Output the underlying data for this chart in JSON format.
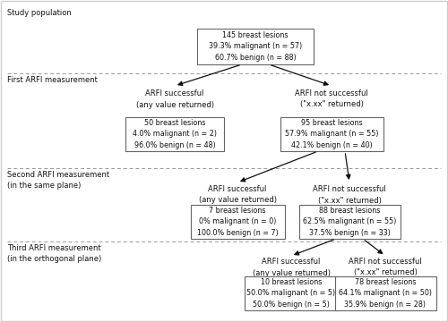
{
  "bg_color": "#ffffff",
  "fig_edge_color": "#cccccc",
  "box_color": "#ffffff",
  "box_edge_color": "#666666",
  "text_color": "#111111",
  "arrow_color": "#111111",
  "dashed_line_color": "#999999",
  "study_population_label": "Study population",
  "first_arfi_label": "First ARFI measurement",
  "second_arfi_label": "Second ARFI measurement\n(in the same plane)",
  "third_arfi_label": "Third ARFI measurement\n(in the orthogonal plane)",
  "root_box": "145 breast lesions\n39.3% malignant (n = 57)\n60.7% benign (n = 88)",
  "left1_label": "ARFI successful\n(any value returned)",
  "right1_label": "ARFI not successful\n(\"x.xx\" returned)",
  "left1_box": "50 breast lesions\n4.0% malignant (n = 2)\n96.0% benign (n = 48)",
  "right1_box": "95 breast lesions\n57.9% malignant (n = 55)\n42.1% benign (n = 40)",
  "left2_label": "ARFI successful\n(any value returned)",
  "right2_label": "ARFI not successful\n(\"x.xx\" returned)",
  "left2_box": "7 breast lesions\n0% malignant (n = 0)\n100.0% benign (n = 7)",
  "right2_box": "88 breast lesions\n62.5% malignant (n = 55)\n37.5% benign (n = 33)",
  "left3_label": "ARFI successful\n(any value returned)",
  "right3_label": "ARFI not successful\n(\"x.xx\" returned)",
  "left3_box": "10 breast lesions\n50.0% malignant (n = 5)\n50.0% benign (n = 5)",
  "right3_box": "78 breast lesions\n64.1% malignant (n = 50)\n35.9% benign (n = 28)"
}
